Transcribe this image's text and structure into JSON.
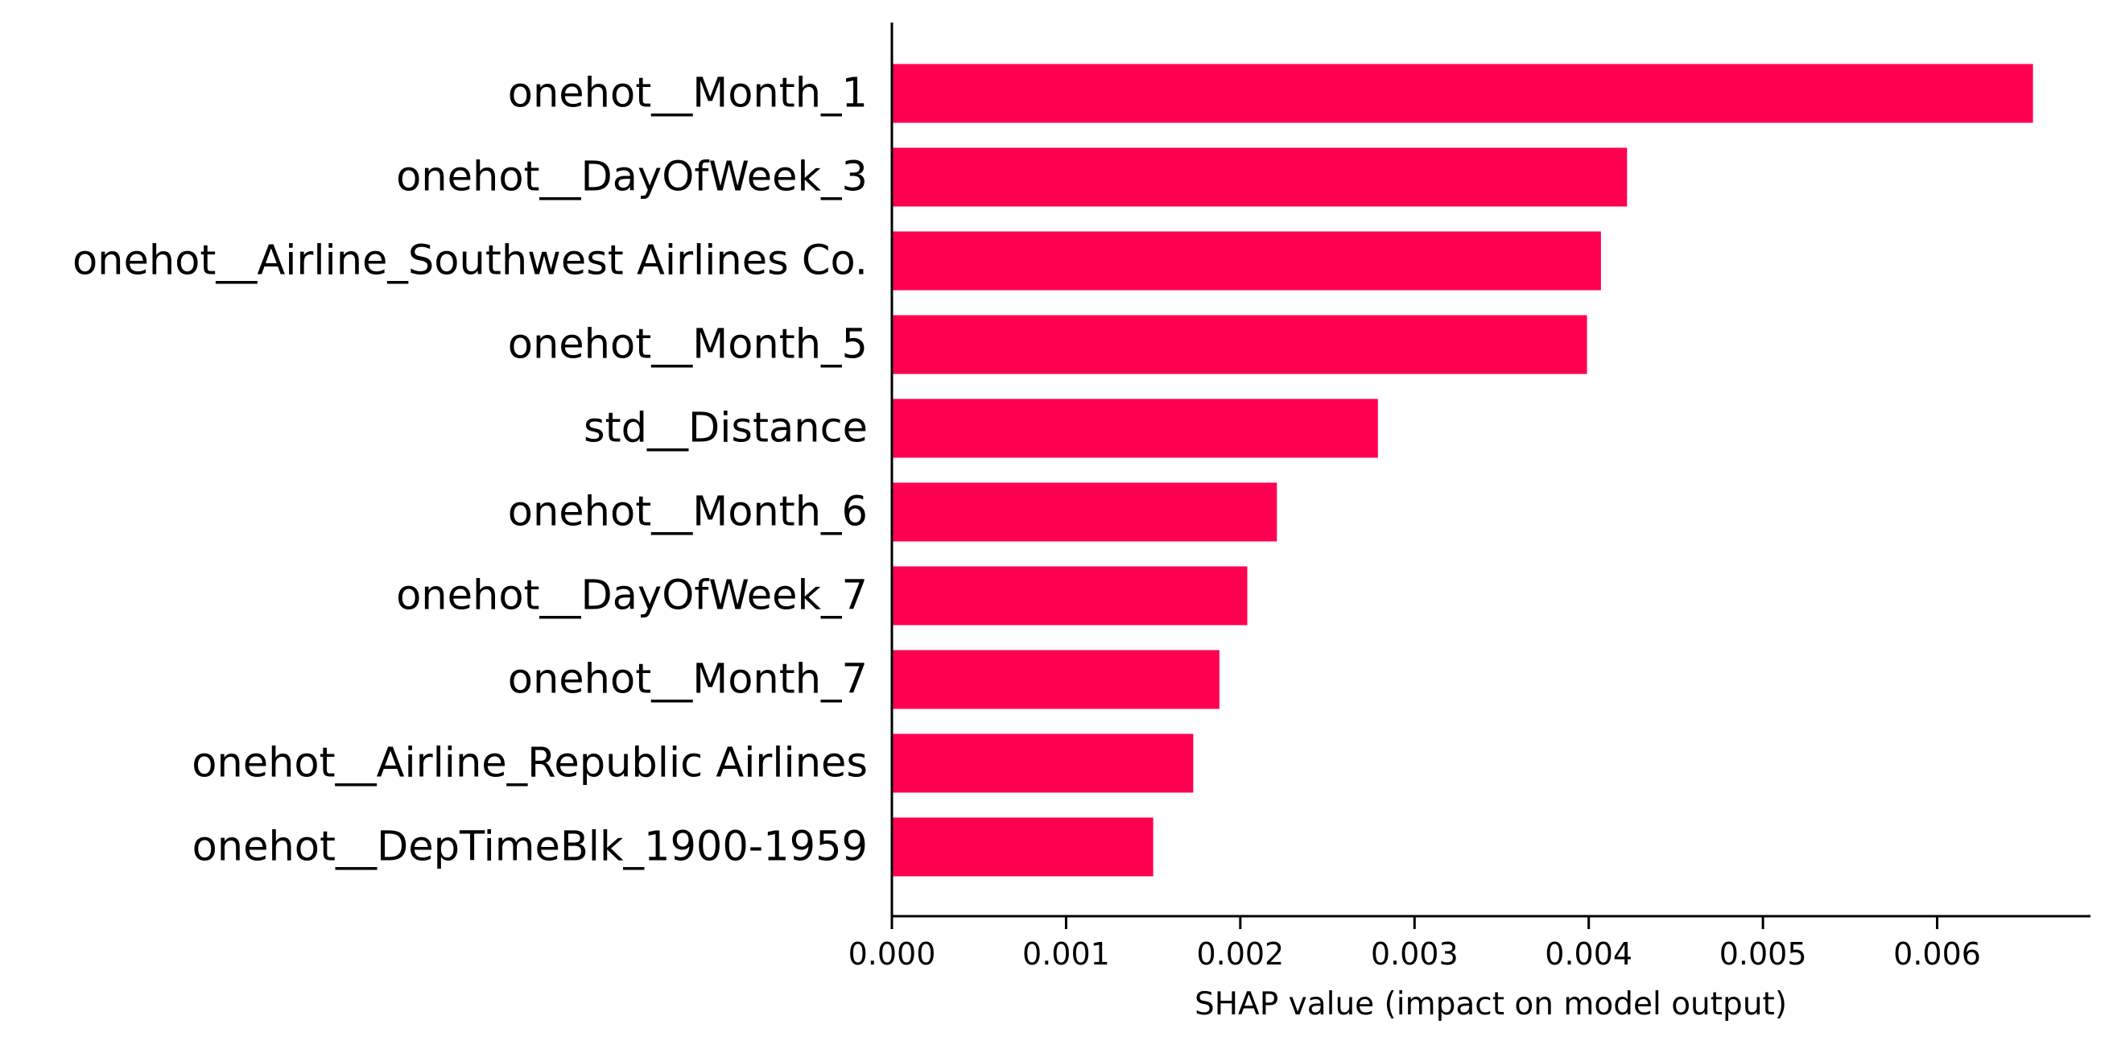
{
  "chart_data": {
    "type": "bar",
    "orientation": "horizontal",
    "categories": [
      "onehot__Month_1",
      "onehot__DayOfWeek_3",
      "onehot__Airline_Southwest Airlines Co.",
      "onehot__Month_5",
      "std__Distance",
      "onehot__Month_6",
      "onehot__DayOfWeek_7",
      "onehot__Month_7",
      "onehot__Airline_Republic Airlines",
      "onehot__DepTimeBlk_1900-1959"
    ],
    "values": [
      0.00655,
      0.00422,
      0.00407,
      0.00399,
      0.00279,
      0.00221,
      0.00204,
      0.00188,
      0.00173,
      0.0015
    ],
    "xlabel": "SHAP value (impact on model output)",
    "ylabel": "",
    "xlim": [
      0,
      0.00688
    ],
    "xticks": [
      0.0,
      0.001,
      0.002,
      0.003,
      0.004,
      0.005,
      0.006
    ],
    "xtick_labels": [
      "0.000",
      "0.001",
      "0.002",
      "0.003",
      "0.004",
      "0.005",
      "0.006"
    ],
    "bar_color": "#ff0051",
    "axis_color": "#000000",
    "grid": false,
    "legend": "none"
  }
}
